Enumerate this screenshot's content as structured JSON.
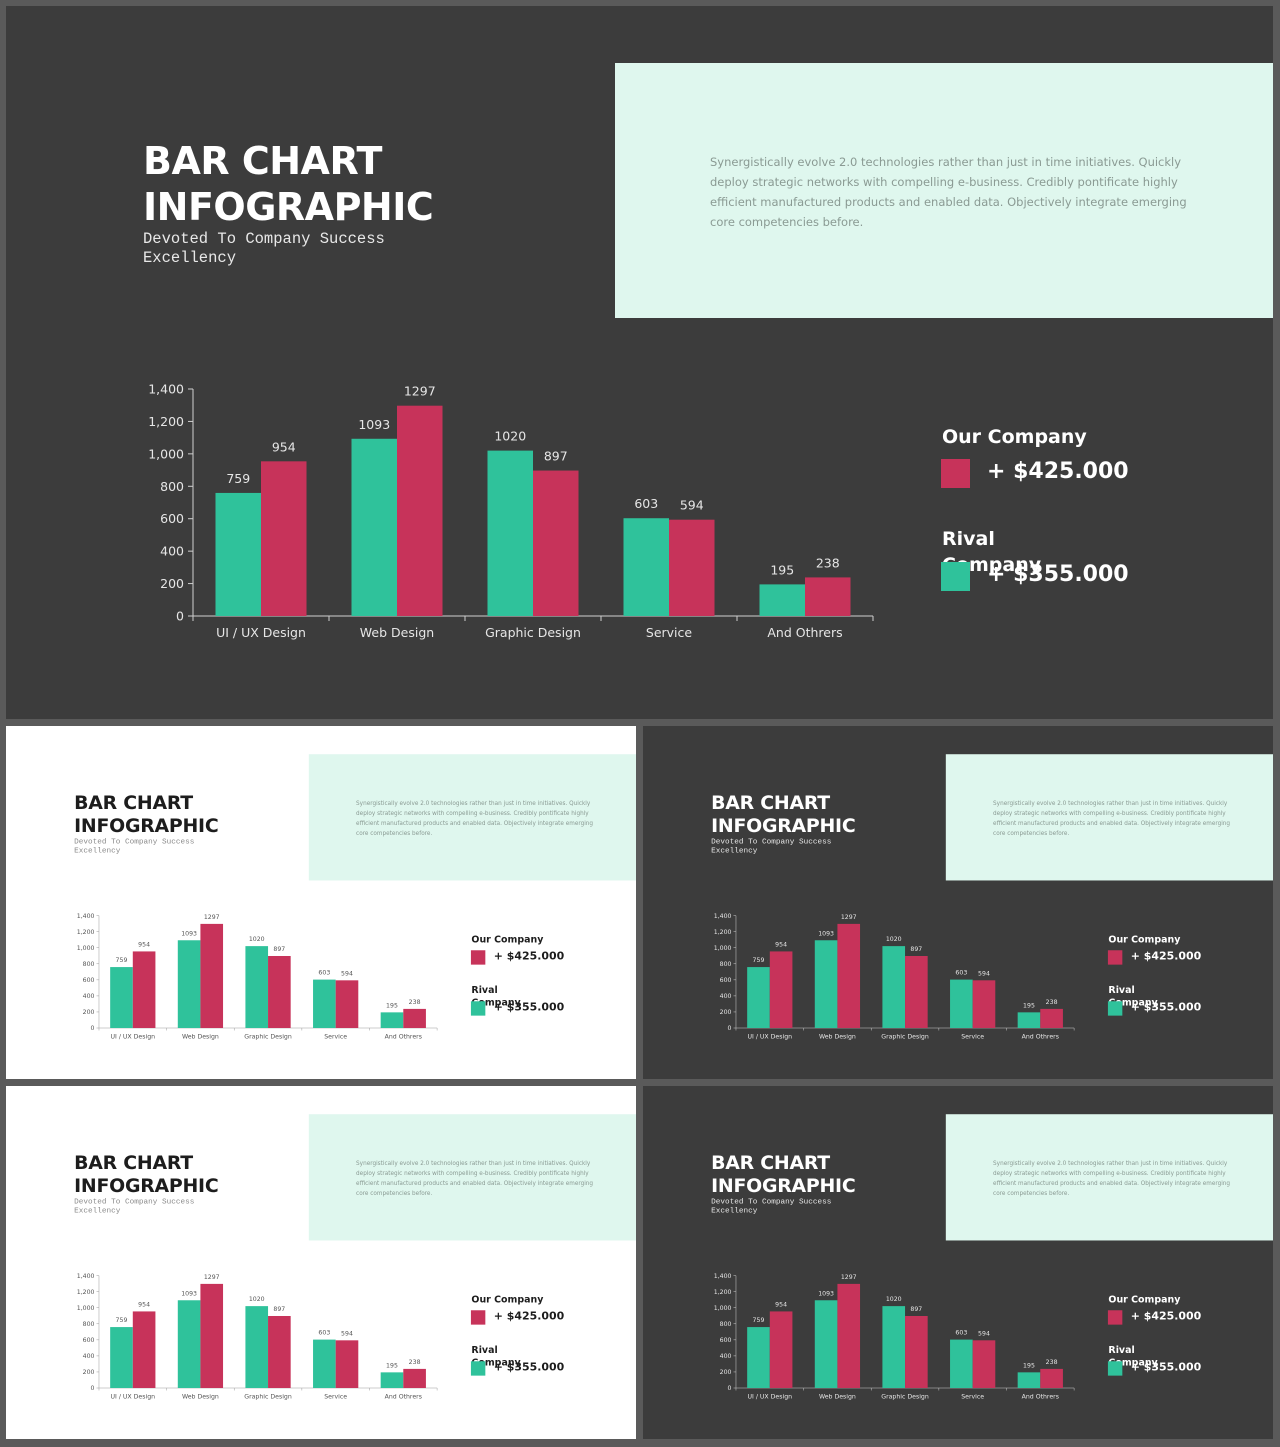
{
  "title_line1": "BAR CHART",
  "title_line2": "INFOGRAPHIC",
  "subtitle": "Devoted To Company Success Excellency",
  "description": "Synergistically evolve 2.0 technologies rather than just in time initiatives. Quickly deploy strategic networks with compelling e-business. Credibly pontificate highly efficient manufactured products and enabled data. Objectively integrate emerging core competencies before.",
  "legend": [
    {
      "label": "Our Company",
      "value": "+ $425.000",
      "color": "#c7335a"
    },
    {
      "label": "Rival Company",
      "value": "+ $355.000",
      "color": "#2fc29b"
    }
  ],
  "colors": {
    "dark_bg": "#3c3c3c",
    "light_bg": "#ffffff",
    "textbox": "#dff7ee",
    "teal": "#2fc29b",
    "crimson": "#c7335a"
  },
  "chart_data": {
    "type": "bar",
    "categories": [
      "UI / UX Design",
      "Web Design",
      "Graphic Design",
      "Service",
      "And Othrers"
    ],
    "series": [
      {
        "values": [
          759,
          1093,
          1020,
          603,
          195
        ],
        "color": "#2fc29b"
      },
      {
        "values": [
          954,
          1297,
          897,
          594,
          238
        ],
        "color": "#c7335a"
      }
    ],
    "ylim": [
      0,
      1400
    ],
    "yticks": [
      0,
      200,
      400,
      600,
      800,
      1000,
      1200,
      1400
    ],
    "ytick_labels": [
      "0",
      "200",
      "400",
      "600",
      "800",
      "1,000",
      "1,200",
      "1,400"
    ]
  },
  "slides": [
    {
      "theme": "dark"
    },
    {
      "theme": "light"
    },
    {
      "theme": "dark"
    },
    {
      "theme": "light"
    },
    {
      "theme": "dark"
    }
  ]
}
